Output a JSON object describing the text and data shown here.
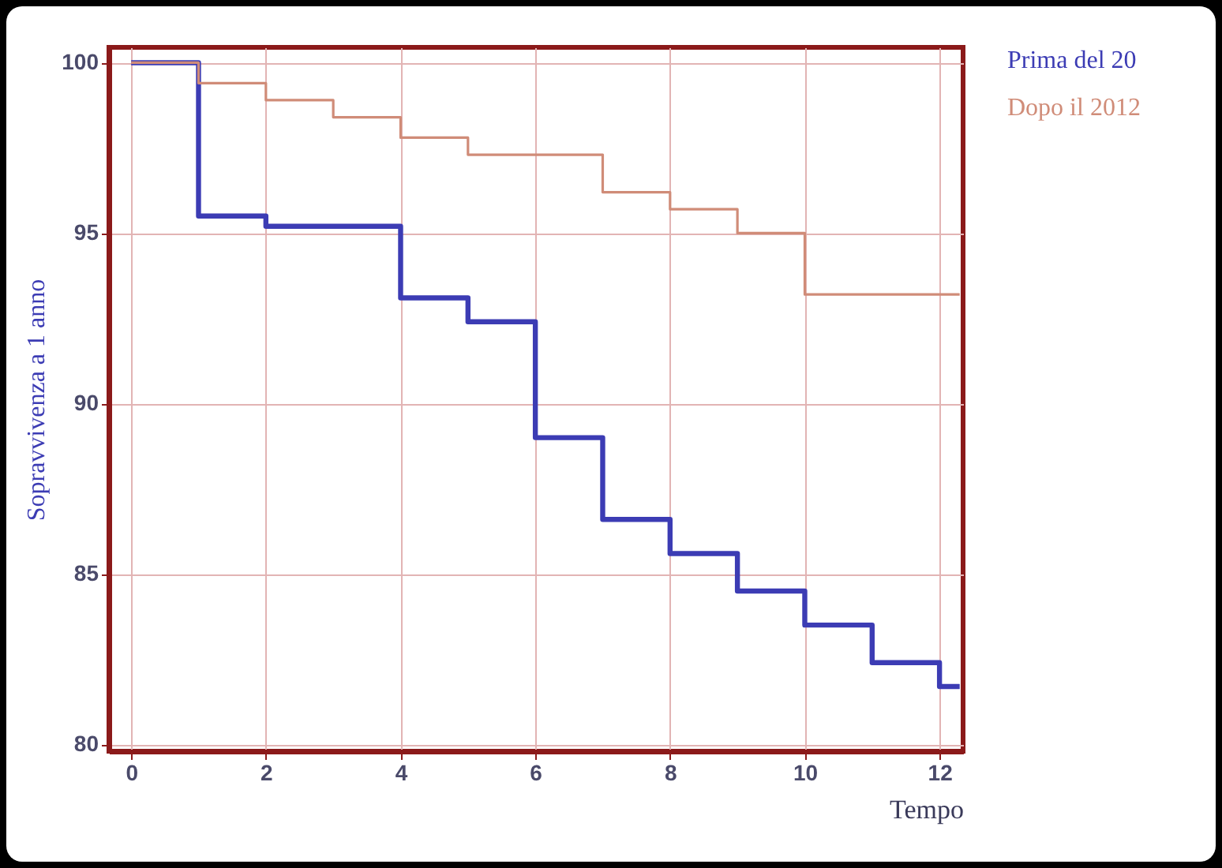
{
  "chart_data": {
    "type": "step",
    "xlabel": "Tempo",
    "ylabel": "Sopravvivenza a 1 anno",
    "xlim": [
      -0.33,
      12.35
    ],
    "ylim": [
      79.8,
      100.45
    ],
    "xticks": [
      0,
      2,
      4,
      6,
      8,
      10,
      12
    ],
    "yticks": [
      80,
      85,
      90,
      95,
      100
    ],
    "grid": true,
    "legend": "right",
    "marker": "none",
    "line_style": "solid",
    "series": [
      {
        "name": "Prima del 20",
        "color": "#3c3cb4",
        "x": [
          0,
          1,
          2,
          4,
          5,
          6,
          7,
          8,
          9,
          10,
          11,
          12,
          12.3
        ],
        "values": [
          100,
          95.5,
          95.2,
          93.1,
          92.4,
          89.0,
          86.6,
          85.6,
          84.5,
          83.5,
          82.4,
          81.7,
          81.7
        ]
      },
      {
        "name": "Dopo il 2012",
        "color": "#d08c78",
        "x": [
          0,
          1,
          2,
          3,
          4,
          5,
          7,
          8,
          9,
          10,
          12.3
        ],
        "values": [
          100,
          99.4,
          98.9,
          98.4,
          97.8,
          97.3,
          96.2,
          95.7,
          95.0,
          93.2,
          93.2
        ]
      }
    ]
  }
}
